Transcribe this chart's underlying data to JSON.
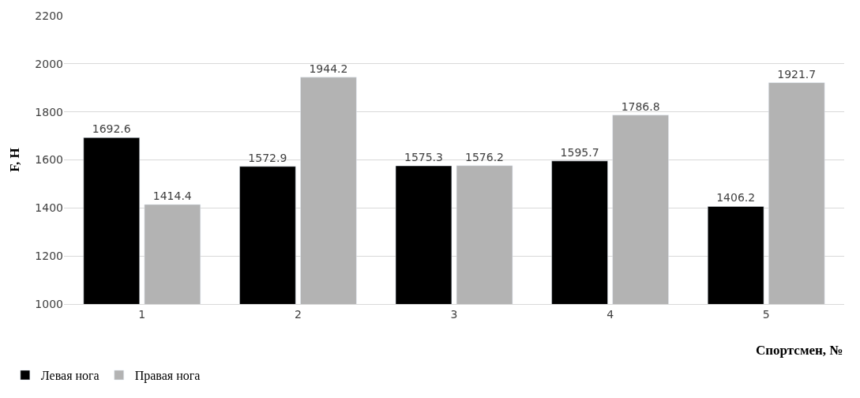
{
  "chart_data": {
    "type": "bar",
    "xlabel": "Спортсмен, №",
    "ylabel": "F, Н",
    "categories": [
      "1",
      "2",
      "3",
      "4",
      "5"
    ],
    "series": [
      {
        "name": "Левая нога",
        "color": "#000000",
        "values": [
          1692.6,
          1572.9,
          1575.3,
          1595.7,
          1406.2
        ]
      },
      {
        "name": "Правая нога",
        "color": "#b3b3b3",
        "values": [
          1414.4,
          1944.2,
          1576.2,
          1786.8,
          1921.7
        ]
      }
    ],
    "ylim": [
      1000,
      2200
    ],
    "yticks": [
      1000,
      1200,
      1400,
      1600,
      1800,
      2000,
      2200
    ],
    "grid": "y",
    "legend": "bottom left",
    "data_labels": true
  }
}
